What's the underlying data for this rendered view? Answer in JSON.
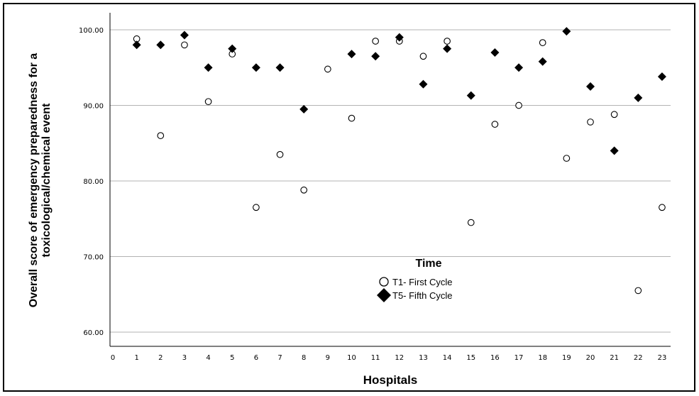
{
  "chart_data": {
    "type": "scatter",
    "title": "",
    "xlabel": "Hospitals",
    "ylabel_lines": [
      "Overall score of emergency preparedness for a",
      "toxicological/chemical event"
    ],
    "xlim": [
      0,
      23
    ],
    "ylim": [
      58,
      102.5
    ],
    "x_ticks": [
      0,
      1,
      2,
      3,
      4,
      5,
      6,
      7,
      8,
      9,
      10,
      11,
      12,
      13,
      14,
      15,
      16,
      17,
      18,
      19,
      20,
      21,
      22,
      23
    ],
    "y_ticks": [
      "60.00",
      "70.00",
      "80.00",
      "90.00",
      "100.00"
    ],
    "y_tick_values": [
      60,
      70,
      80,
      90,
      100
    ],
    "grid": "horizontal",
    "legend": {
      "title": "Time",
      "placement": "center"
    },
    "series": [
      {
        "name": "T1- First Cycle",
        "marker": "open-circle",
        "x": [
          1,
          2,
          3,
          4,
          5,
          6,
          7,
          8,
          9,
          10,
          11,
          12,
          13,
          14,
          15,
          16,
          17,
          18,
          19,
          20,
          21,
          22,
          23
        ],
        "y": [
          98.8,
          86,
          98,
          90.5,
          96.8,
          76.5,
          83.5,
          78.8,
          94.8,
          88.3,
          98.5,
          98.5,
          96.5,
          98.5,
          74.5,
          87.5,
          90,
          98.3,
          83,
          87.8,
          88.8,
          65.5,
          76.5
        ]
      },
      {
        "name": "T5- Fifth Cycle",
        "marker": "filled-diamond",
        "x": [
          1,
          2,
          3,
          4,
          5,
          6,
          7,
          8,
          10,
          11,
          12,
          13,
          14,
          15,
          16,
          17,
          18,
          19,
          20,
          21,
          22,
          23
        ],
        "y": [
          98,
          98,
          99.3,
          95,
          97.5,
          95,
          95,
          89.5,
          96.8,
          96.5,
          99,
          92.8,
          97.5,
          91.3,
          97,
          95,
          95.8,
          99.8,
          92.5,
          84,
          91,
          93.8
        ]
      }
    ]
  }
}
